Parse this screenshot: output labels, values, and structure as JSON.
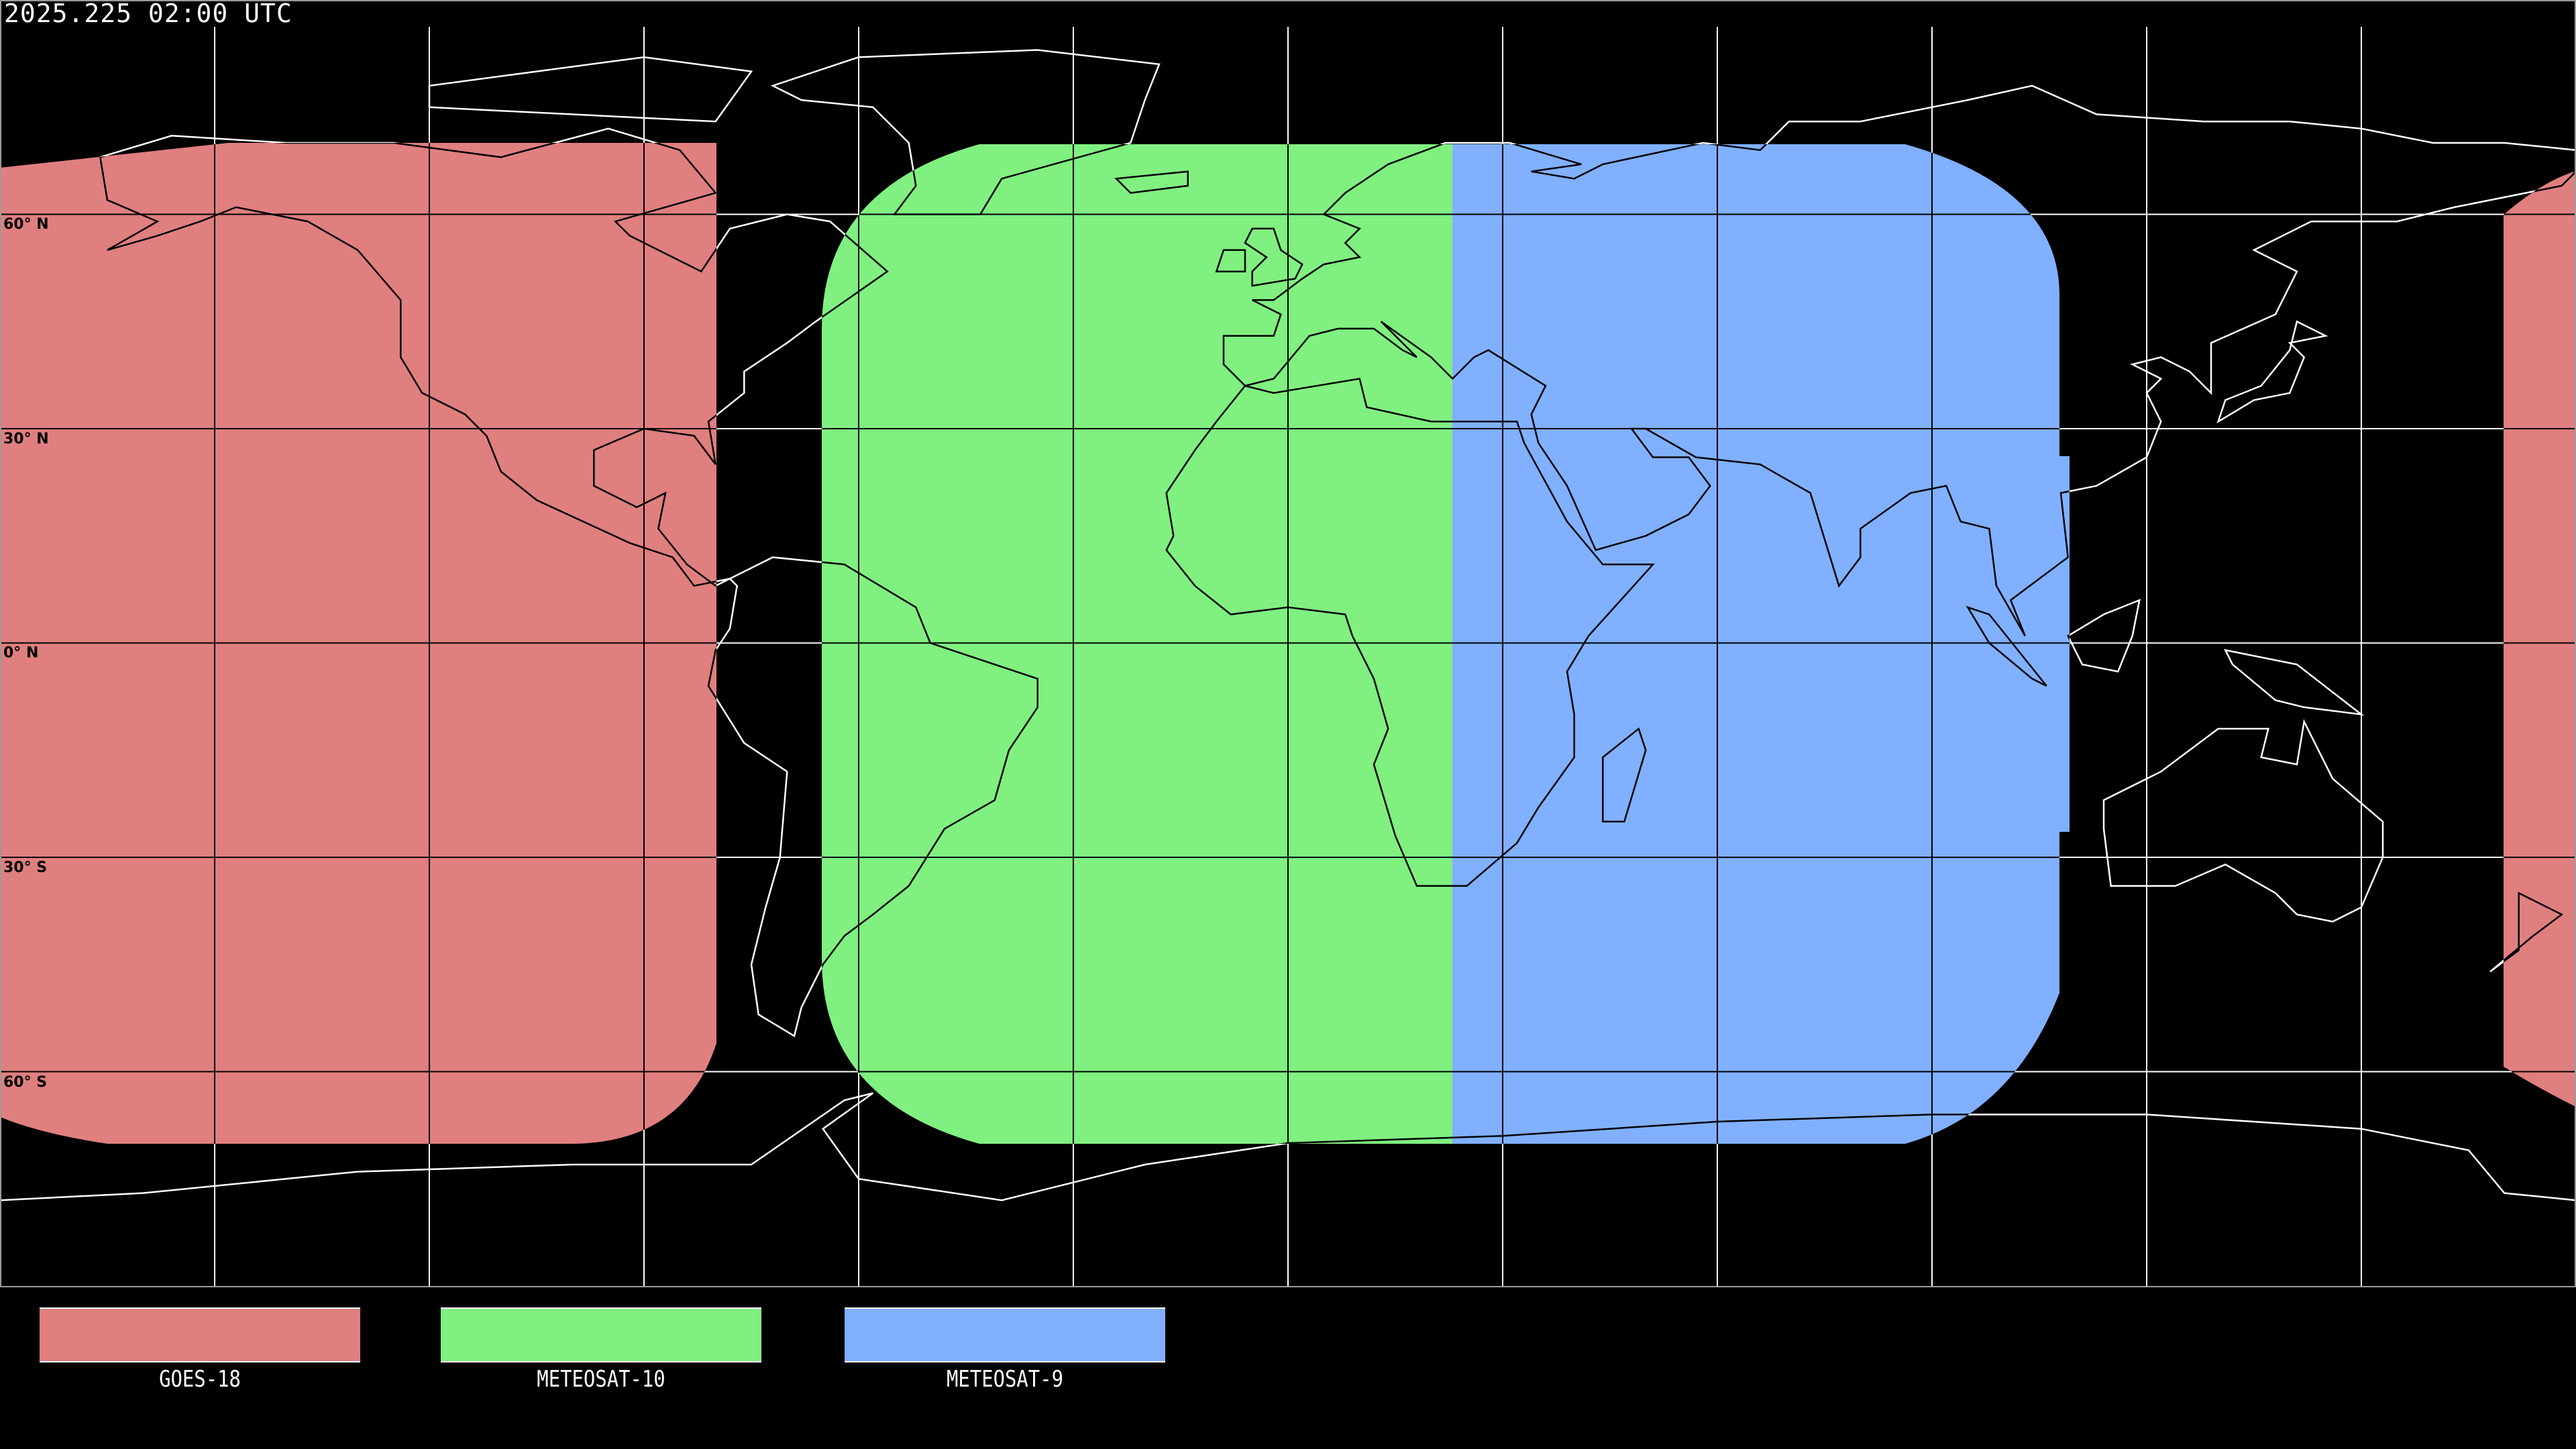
{
  "title": "2025.225 02:00 UTC",
  "lat_labels": [
    "60° N",
    "30° N",
    "0° N",
    "30° S",
    "60° S"
  ],
  "legend": [
    {
      "label": "GOES-18",
      "color": "#e07f7f"
    },
    {
      "label": "METEOSAT-10",
      "color": "#80f080"
    },
    {
      "label": "METEOSAT-9",
      "color": "#80b0ff"
    }
  ],
  "colors": {
    "background": "#000000",
    "grid_on_background": "#ffffff",
    "grid_on_coverage": "#000000"
  }
}
